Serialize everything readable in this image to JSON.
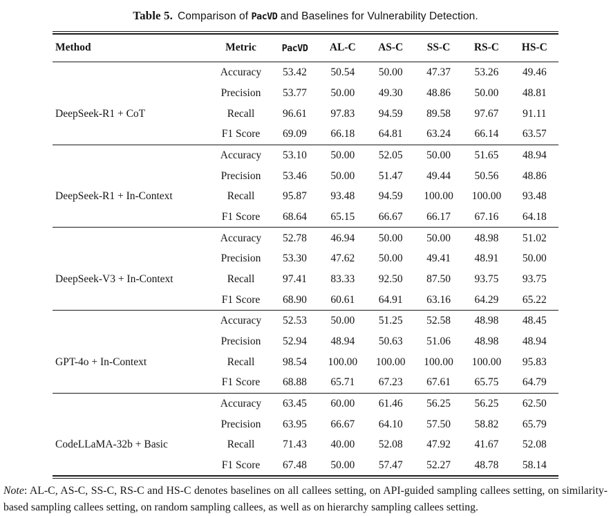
{
  "caption": {
    "label": "Table 5.",
    "before_tool": "Comparison of ",
    "tool": "PacVD",
    "after_tool": " and Baselines for Vulnerability Detection."
  },
  "table": {
    "headers": [
      {
        "label": "Method"
      },
      {
        "label": "Metric"
      },
      {
        "label": "PacVD",
        "mono": true
      },
      {
        "label": "AL-C"
      },
      {
        "label": "AS-C"
      },
      {
        "label": "SS-C"
      },
      {
        "label": "RS-C"
      },
      {
        "label": "HS-C"
      }
    ],
    "groups": [
      {
        "method": "DeepSeek-R1 + CoT",
        "rows": [
          {
            "metric": "Accuracy",
            "pacvd": "53.42",
            "pacvd_bold": true,
            "baselines": [
              "50.54",
              "50.00",
              "47.37",
              "53.26",
              "49.46"
            ]
          },
          {
            "metric": "Precision",
            "pacvd": "53.77",
            "pacvd_bold": true,
            "baselines": [
              "50.00",
              "49.30",
              "48.86",
              "50.00",
              "48.81"
            ]
          },
          {
            "metric": "Recall",
            "pacvd": "96.61",
            "pacvd_bold": false,
            "baselines": [
              "97.83",
              "94.59",
              "89.58",
              "97.67",
              "91.11"
            ]
          },
          {
            "metric": "F1 Score",
            "pacvd": "69.09",
            "pacvd_bold": true,
            "baselines": [
              "66.18",
              "64.81",
              "63.24",
              "66.14",
              "63.57"
            ]
          }
        ]
      },
      {
        "method": "DeepSeek-R1 + In-Context",
        "rows": [
          {
            "metric": "Accuracy",
            "pacvd": "53.10",
            "pacvd_bold": true,
            "baselines": [
              "50.00",
              "52.05",
              "50.00",
              "51.65",
              "48.94"
            ]
          },
          {
            "metric": "Precision",
            "pacvd": "53.46",
            "pacvd_bold": true,
            "baselines": [
              "50.00",
              "51.47",
              "49.44",
              "50.56",
              "48.86"
            ]
          },
          {
            "metric": "Recall",
            "pacvd": "95.87",
            "pacvd_bold": false,
            "baselines": [
              "93.48",
              "94.59",
              "100.00",
              "100.00",
              "93.48"
            ]
          },
          {
            "metric": "F1 Score",
            "pacvd": "68.64",
            "pacvd_bold": true,
            "baselines": [
              "65.15",
              "66.67",
              "66.17",
              "67.16",
              "64.18"
            ]
          }
        ]
      },
      {
        "method": "DeepSeek-V3 + In-Context",
        "rows": [
          {
            "metric": "Accuracy",
            "pacvd": "52.78",
            "pacvd_bold": true,
            "baselines": [
              "46.94",
              "50.00",
              "50.00",
              "48.98",
              "51.02"
            ]
          },
          {
            "metric": "Precision",
            "pacvd": "53.30",
            "pacvd_bold": true,
            "baselines": [
              "47.62",
              "50.00",
              "49.41",
              "48.91",
              "50.00"
            ]
          },
          {
            "metric": "Recall",
            "pacvd": "97.41",
            "pacvd_bold": true,
            "baselines": [
              "83.33",
              "92.50",
              "87.50",
              "93.75",
              "93.75"
            ]
          },
          {
            "metric": "F1 Score",
            "pacvd": "68.90",
            "pacvd_bold": true,
            "baselines": [
              "60.61",
              "64.91",
              "63.16",
              "64.29",
              "65.22"
            ]
          }
        ]
      },
      {
        "method": "GPT-4o + In-Context",
        "rows": [
          {
            "metric": "Accuracy",
            "pacvd": "52.53",
            "pacvd_bold": true,
            "baselines": [
              "50.00",
              "51.25",
              "52.58",
              "48.98",
              "48.45"
            ]
          },
          {
            "metric": "Precision",
            "pacvd": "52.94",
            "pacvd_bold": true,
            "baselines": [
              "48.94",
              "50.63",
              "51.06",
              "48.98",
              "48.94"
            ]
          },
          {
            "metric": "Recall",
            "pacvd": "98.54",
            "pacvd_bold": false,
            "baselines": [
              "100.00",
              "100.00",
              "100.00",
              "100.00",
              "95.83"
            ]
          },
          {
            "metric": "F1 Score",
            "pacvd": "68.88",
            "pacvd_bold": true,
            "baselines": [
              "65.71",
              "67.23",
              "67.61",
              "65.75",
              "64.79"
            ]
          }
        ]
      },
      {
        "method": "CodeLLaMA-32b + Basic",
        "rows": [
          {
            "metric": "Accuracy",
            "pacvd": "63.45",
            "pacvd_bold": true,
            "baselines": [
              "60.00",
              "61.46",
              "56.25",
              "56.25",
              "62.50"
            ]
          },
          {
            "metric": "Precision",
            "pacvd": "63.95",
            "pacvd_bold": false,
            "baselines": [
              "66.67",
              "64.10",
              "57.50",
              "58.82",
              "65.79"
            ]
          },
          {
            "metric": "Recall",
            "pacvd": "71.43",
            "pacvd_bold": true,
            "baselines": [
              "40.00",
              "52.08",
              "47.92",
              "41.67",
              "52.08"
            ]
          },
          {
            "metric": "F1 Score",
            "pacvd": "67.48",
            "pacvd_bold": true,
            "baselines": [
              "50.00",
              "57.47",
              "52.27",
              "48.78",
              "58.14"
            ]
          }
        ]
      }
    ]
  },
  "note": {
    "label": "Note",
    "text": ": AL-C, AS-C, SS-C, RS-C and HS-C denotes baselines on all callees setting, on API-guided sampling callees setting, on similarity-based sampling callees setting, on random sampling callees, as well as on hierarchy sampling callees setting."
  }
}
